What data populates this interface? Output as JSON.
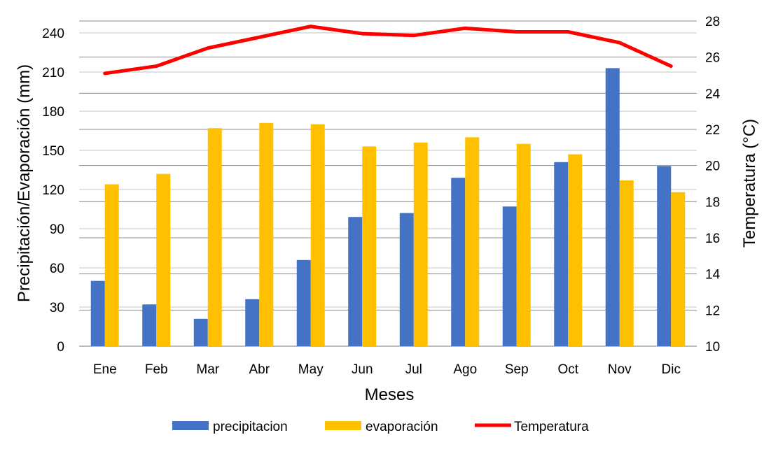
{
  "chart_data": {
    "type": "bar+line",
    "xlabel": "Meses",
    "ylabel": "Precipitación/Evaporación (mm)",
    "y2label": "Temperatura (°C)",
    "categories": [
      "Ene",
      "Feb",
      "Mar",
      "Abr",
      "May",
      "Jun",
      "Jul",
      "Ago",
      "Sep",
      "Oct",
      "Nov",
      "Dic"
    ],
    "ylim": [
      0,
      250
    ],
    "yticks": [
      0,
      30,
      60,
      90,
      120,
      150,
      180,
      210,
      240
    ],
    "y2lim": [
      10,
      28
    ],
    "y2ticks": [
      10,
      12,
      14,
      16,
      18,
      20,
      22,
      24,
      26,
      28
    ],
    "grid": true,
    "legend_position": "bottom",
    "series": [
      {
        "name": "precipitacion",
        "type": "bar",
        "axis": "left",
        "color": "#4472C4",
        "values": [
          50,
          32,
          21,
          36,
          66,
          99,
          102,
          129,
          107,
          141,
          213,
          138
        ]
      },
      {
        "name": "evaporación",
        "type": "bar",
        "axis": "left",
        "color": "#FFC000",
        "values": [
          124,
          132,
          167,
          171,
          170,
          153,
          156,
          160,
          155,
          147,
          127,
          118
        ]
      },
      {
        "name": "Temperatura",
        "type": "line",
        "axis": "right",
        "color": "#FF0000",
        "values": [
          25.1,
          25.5,
          26.5,
          27.1,
          27.7,
          27.3,
          27.2,
          27.6,
          27.4,
          27.4,
          26.8,
          25.5
        ]
      }
    ]
  }
}
